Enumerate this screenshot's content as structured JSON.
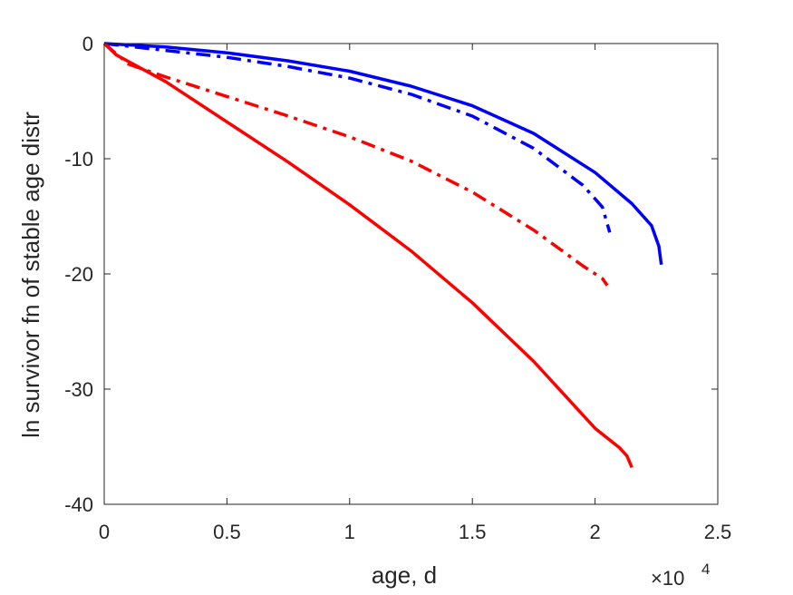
{
  "chart_data": {
    "type": "line",
    "title": "",
    "xlabel": "age, d",
    "ylabel": "ln survivor fn of stable age distr",
    "x_multiplier_label": "×10",
    "x_multiplier_exponent": "4",
    "xlim": [
      0,
      25000
    ],
    "ylim": [
      -40,
      0
    ],
    "x_ticks": [
      0,
      5000,
      10000,
      15000,
      20000,
      25000
    ],
    "x_tick_labels": [
      "0",
      "0.5",
      "1",
      "1.5",
      "2",
      "2.5"
    ],
    "y_ticks": [
      0,
      -10,
      -20,
      -30,
      -40
    ],
    "y_tick_labels": [
      "0",
      "-10",
      "-20",
      "-30",
      "-40"
    ],
    "grid": false,
    "series": [
      {
        "color": "#0000ff",
        "style": "solid",
        "x": [
          0,
          2500,
          5000,
          7500,
          10000,
          12500,
          15000,
          17500,
          20000,
          21500,
          22300,
          22600,
          22700
        ],
        "y": [
          0,
          -0.3,
          -0.8,
          -1.5,
          -2.4,
          -3.7,
          -5.4,
          -7.8,
          -11.2,
          -13.9,
          -15.8,
          -17.6,
          -19.2
        ]
      },
      {
        "color": "#0000ff",
        "style": "dashdot",
        "x": [
          0,
          2500,
          5000,
          7500,
          10000,
          12500,
          15000,
          17500,
          19500,
          20300,
          20600
        ],
        "y": [
          0,
          -0.6,
          -1.2,
          -2.0,
          -3.0,
          -4.4,
          -6.3,
          -9.1,
          -12.3,
          -14.2,
          -16.4
        ]
      },
      {
        "color": "#ff0000",
        "style": "dashdot",
        "x": [
          0,
          1000,
          2500,
          5000,
          7500,
          10000,
          12500,
          15000,
          17500,
          19500,
          20300,
          20500
        ],
        "y": [
          0,
          -1.8,
          -2.9,
          -4.6,
          -6.3,
          -8.1,
          -10.2,
          -12.9,
          -16.2,
          -19.3,
          -20.4,
          -21.0
        ]
      },
      {
        "color": "#ff0000",
        "style": "solid",
        "x": [
          0,
          500,
          2500,
          5000,
          7500,
          10000,
          12500,
          15000,
          17500,
          20000,
          21000,
          21300,
          21500
        ],
        "y": [
          0,
          -1.0,
          -3.3,
          -6.8,
          -10.3,
          -14.0,
          -18.0,
          -22.5,
          -27.6,
          -33.4,
          -35.1,
          -35.8,
          -36.8
        ]
      }
    ]
  }
}
